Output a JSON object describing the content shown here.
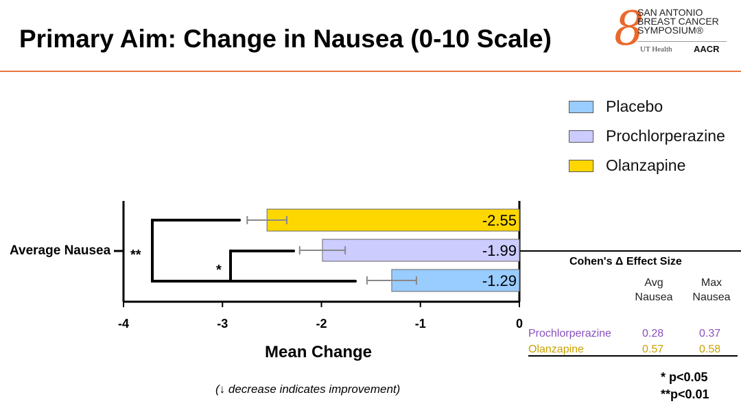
{
  "title": "Primary Aim: Change in Nausea (0-10 Scale)",
  "logo": {
    "line1": "SAN ANTONIO",
    "line2": "BREAST CANCER",
    "line3": "SYMPOSIUM®",
    "ut": "UT Health",
    "aacr": "AACR"
  },
  "note": "(↓ decrease indicates improvement)",
  "chart_data": {
    "type": "bar",
    "orientation": "horizontal",
    "categories": [
      "Average Nausea"
    ],
    "xlabel": "Mean Change",
    "ylabel": "",
    "xlim": [
      -4,
      0
    ],
    "xticks": [
      "-4",
      "-3",
      "-2",
      "-1",
      "0"
    ],
    "legend_position": "top-right",
    "series": [
      {
        "name": "Placebo",
        "values": [
          -1.29
        ],
        "label": "-1.29",
        "error": 0.25,
        "color": "#99ccff"
      },
      {
        "name": "Prochlorperazine",
        "values": [
          -1.99
        ],
        "label": "-1.99",
        "error": 0.23,
        "color": "#ccccff"
      },
      {
        "name": "Olanzapine",
        "values": [
          -2.55
        ],
        "label": "-2.55",
        "error": 0.2,
        "color": "#ffd700"
      }
    ],
    "annotations": [
      {
        "text": "**",
        "between": [
          "Olanzapine",
          "Placebo"
        ]
      },
      {
        "text": "*",
        "between": [
          "Prochlorperazine",
          "Placebo"
        ]
      }
    ]
  },
  "effect_table": {
    "title": "Cohen's Δ Effect Size",
    "columns": [
      "Avg\nNausea",
      "Max\nNausea"
    ],
    "col1": [
      "Avg",
      "Nausea"
    ],
    "col2": [
      "Max",
      "Nausea"
    ],
    "rows": [
      {
        "name": "Prochlorperazine",
        "avg": "0.28",
        "max": "0.37",
        "color": "#8a4fbf"
      },
      {
        "name": "Olanzapine",
        "avg": "0.57",
        "max": "0.58",
        "color": "#c9a100"
      }
    ]
  },
  "significance": [
    "* p<0.05",
    "**p<0.01"
  ]
}
